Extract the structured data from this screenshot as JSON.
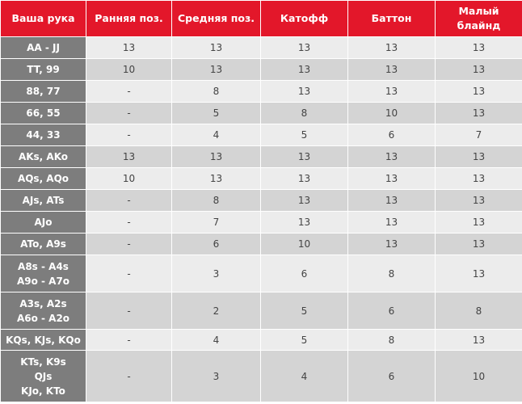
{
  "table": {
    "header": [
      "Ваша рука",
      "Ранняя поз.",
      "Средняя поз.",
      "Катофф",
      "Баттон",
      "Малый\nблайнд"
    ],
    "rows": [
      [
        "AA - JJ",
        "13",
        "13",
        "13",
        "13",
        "13"
      ],
      [
        "TT, 99",
        "10",
        "13",
        "13",
        "13",
        "13"
      ],
      [
        "88, 77",
        "-",
        "8",
        "13",
        "13",
        "13"
      ],
      [
        "66, 55",
        "-",
        "5",
        "8",
        "10",
        "13"
      ],
      [
        "44, 33",
        "-",
        "4",
        "5",
        "6",
        "7"
      ],
      [
        "AKs, AKo",
        "13",
        "13",
        "13",
        "13",
        "13"
      ],
      [
        "AQs, AQo",
        "10",
        "13",
        "13",
        "13",
        "13"
      ],
      [
        "AJs, ATs",
        "-",
        "8",
        "13",
        "13",
        "13"
      ],
      [
        "AJo",
        "-",
        "7",
        "13",
        "13",
        "13"
      ],
      [
        "ATo, A9s",
        "-",
        "6",
        "10",
        "13",
        "13"
      ],
      [
        "A8s - A4s\nA9o - A7o",
        "-",
        "3",
        "6",
        "8",
        "13"
      ],
      [
        "A3s, A2s\nA6o - A2o",
        "-",
        "2",
        "5",
        "6",
        "8"
      ],
      [
        "KQs, KJs, KQo",
        "-",
        "4",
        "5",
        "8",
        "13"
      ],
      [
        "KTs, K9s\nQJs\nKJo, KTo",
        "-",
        "3",
        "4",
        "6",
        "10"
      ]
    ]
  }
}
